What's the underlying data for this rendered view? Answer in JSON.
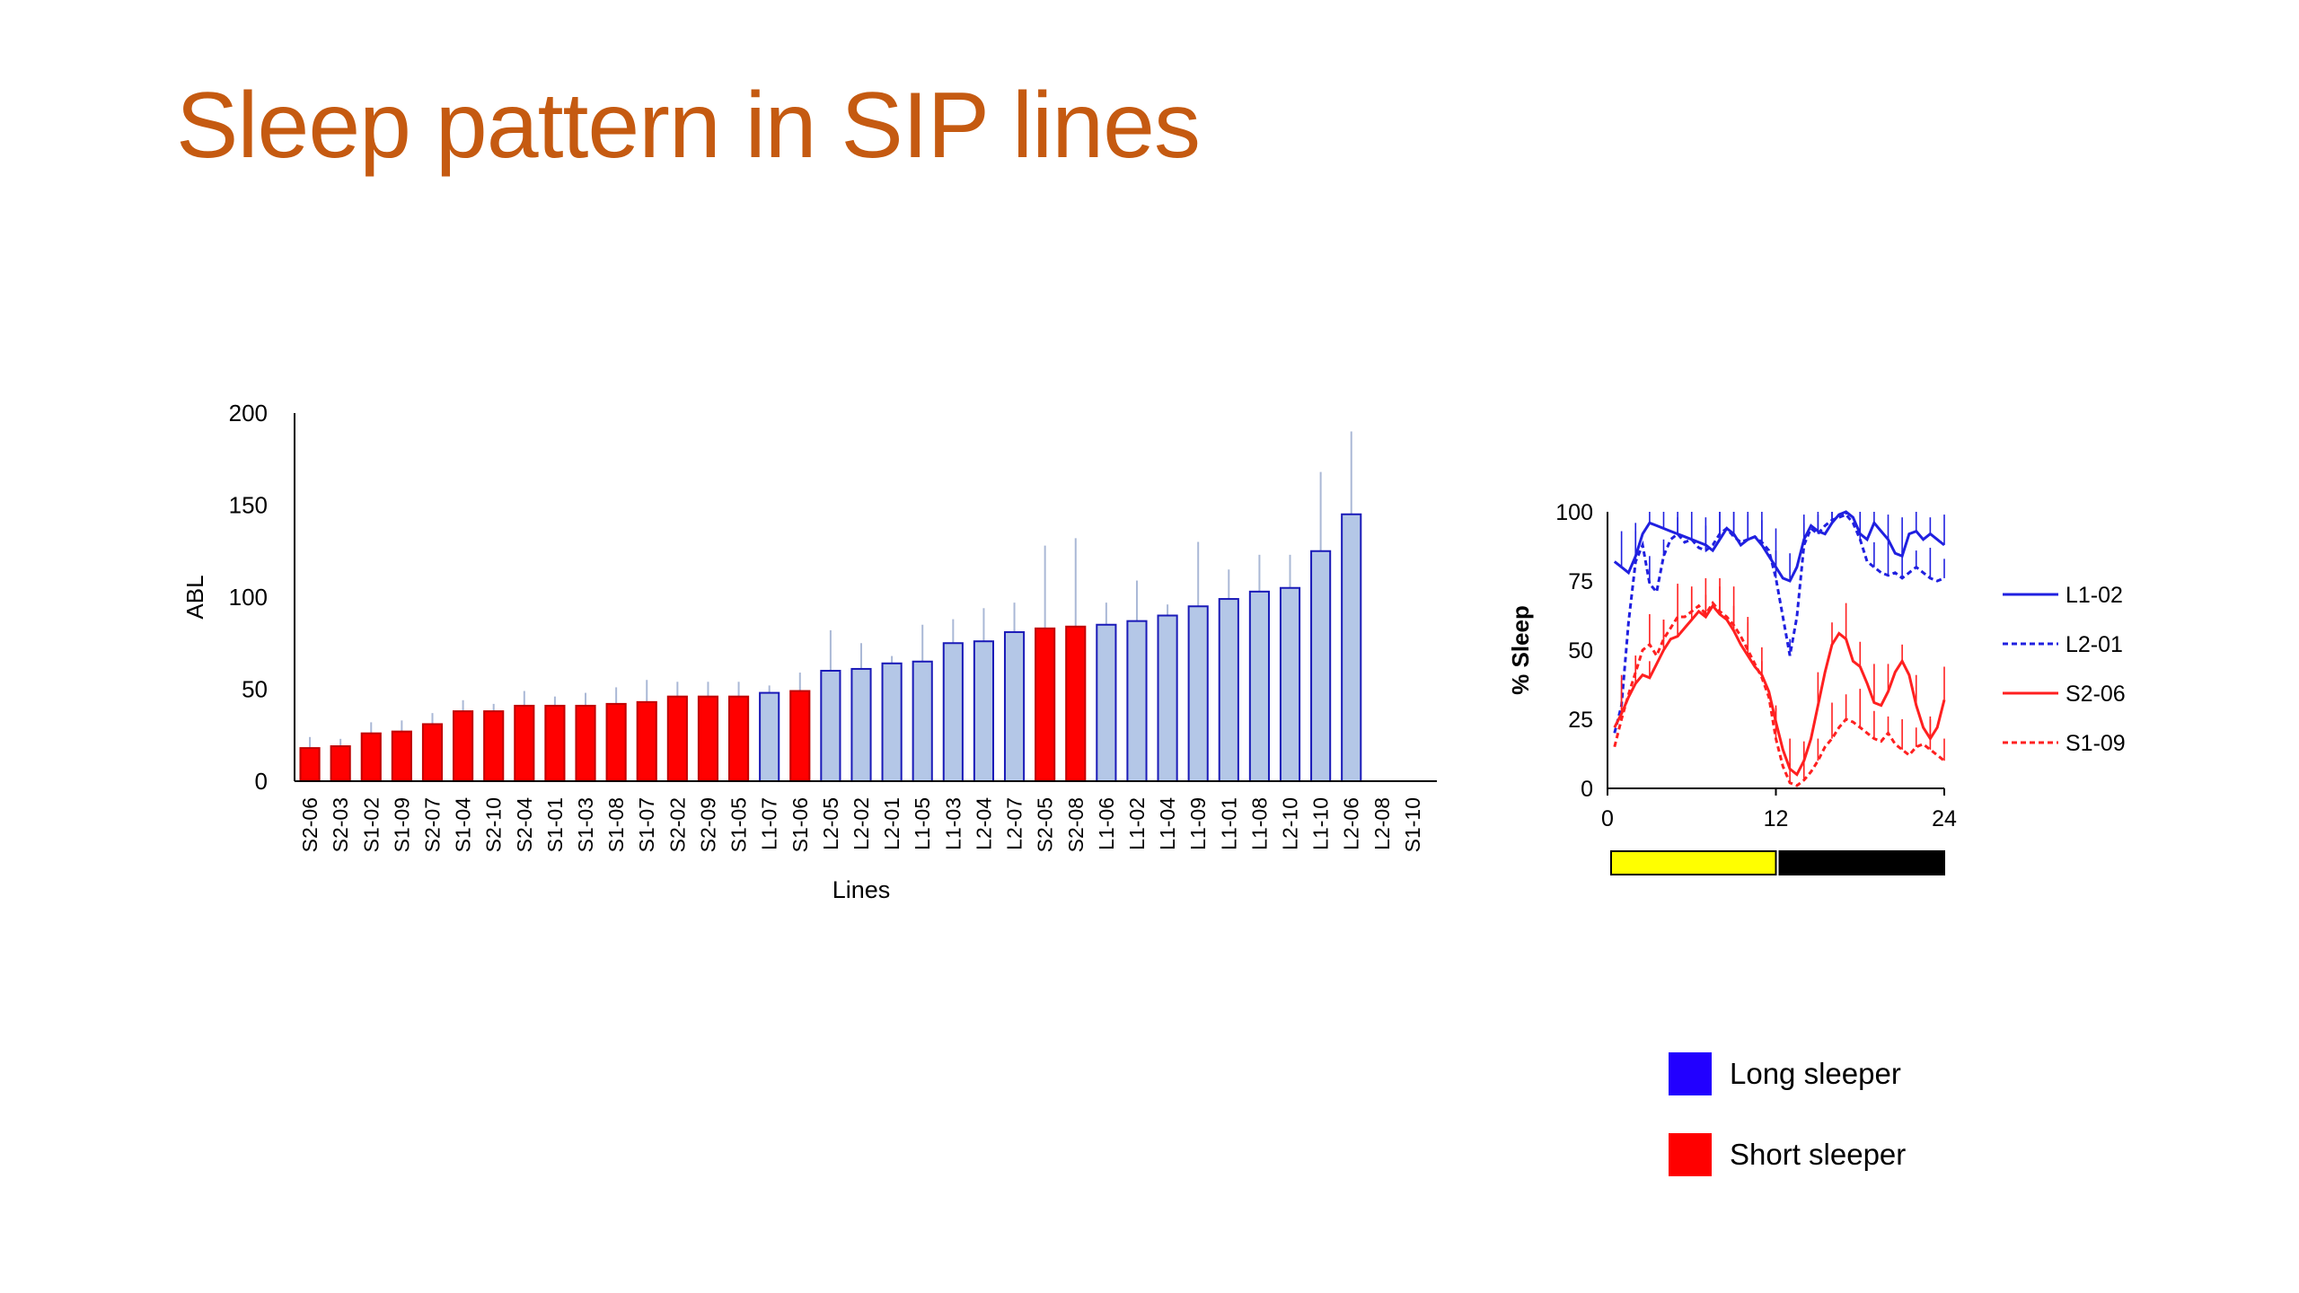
{
  "slide": {
    "title": "Sleep pattern in SIP lines"
  },
  "legend": {
    "items": [
      {
        "label": "Long sleeper",
        "color": "#2200ff"
      },
      {
        "label": "Short sleeper",
        "color": "#ff0000"
      }
    ]
  },
  "colors": {
    "short_bar": "#ff0000",
    "long_bar": "#b4c7e7",
    "long_bar_border": "#1a1ab8",
    "error_bar": "#aab8d6",
    "day": "#ffff00",
    "night": "#000000"
  },
  "chart_data": [
    {
      "type": "bar",
      "xlabel": "Lines",
      "ylabel": "ABL",
      "ylim": [
        0,
        200
      ],
      "yticks": [
        0,
        50,
        100,
        150,
        200
      ],
      "categories": [
        "S2-06",
        "S2-03",
        "S1-02",
        "S1-09",
        "S2-07",
        "S1-04",
        "S2-10",
        "S2-04",
        "S1-01",
        "S1-03",
        "S1-08",
        "S1-07",
        "S2-02",
        "S2-09",
        "S1-05",
        "L1-07",
        "S1-06",
        "L2-05",
        "L2-02",
        "L2-01",
        "L1-05",
        "L1-03",
        "L2-04",
        "L2-07",
        "S2-05",
        "S2-08",
        "L1-06",
        "L1-02",
        "L1-04",
        "L1-09",
        "L1-01",
        "L1-08",
        "L2-10",
        "L1-10",
        "L2-06",
        "L2-08",
        "S1-10"
      ],
      "values": [
        18,
        19,
        26,
        27,
        31,
        38,
        38,
        41,
        41,
        41,
        42,
        43,
        46,
        46,
        46,
        48,
        49,
        60,
        61,
        64,
        65,
        75,
        76,
        81,
        83,
        84,
        85,
        87,
        90,
        95,
        99,
        103,
        105,
        125,
        145,
        null,
        null
      ],
      "error": [
        6,
        4,
        6,
        6,
        6,
        6,
        4,
        8,
        5,
        7,
        9,
        12,
        8,
        8,
        8,
        4,
        10,
        22,
        14,
        4,
        20,
        13,
        18,
        16,
        45,
        48,
        12,
        22,
        6,
        35,
        16,
        20,
        18,
        43,
        45,
        null,
        null
      ],
      "groups": [
        "short",
        "short",
        "short",
        "short",
        "short",
        "short",
        "short",
        "short",
        "short",
        "short",
        "short",
        "short",
        "short",
        "short",
        "short",
        "long",
        "short",
        "long",
        "long",
        "long",
        "long",
        "long",
        "long",
        "long",
        "short",
        "short",
        "long",
        "long",
        "long",
        "long",
        "long",
        "long",
        "long",
        "long",
        "long",
        "short",
        "short"
      ]
    },
    {
      "type": "line",
      "ylabel": "% Sleep",
      "xlim": [
        0,
        24
      ],
      "ylim": [
        0,
        100
      ],
      "xticks": [
        0,
        12,
        24
      ],
      "yticks": [
        0,
        25,
        50,
        75,
        100
      ],
      "light_dark_bar": [
        {
          "from": 0,
          "to": 12,
          "phase": "light"
        },
        {
          "from": 12,
          "to": 24,
          "phase": "dark"
        }
      ],
      "x": [
        0.5,
        1,
        1.5,
        2,
        2.5,
        3,
        3.5,
        4,
        4.5,
        5,
        5.5,
        6,
        6.5,
        7,
        7.5,
        8,
        8.5,
        9,
        9.5,
        10,
        10.5,
        11,
        11.5,
        12,
        12.5,
        13,
        13.5,
        14,
        14.5,
        15,
        15.5,
        16,
        16.5,
        17,
        17.5,
        18,
        18.5,
        19,
        19.5,
        20,
        20.5,
        21,
        21.5,
        22,
        22.5,
        23,
        23.5,
        24
      ],
      "series": [
        {
          "name": "L1-02",
          "color": "#2020e0",
          "dash": "solid",
          "values": [
            82,
            80,
            78,
            84,
            92,
            96,
            95,
            94,
            93,
            92,
            91,
            90,
            89,
            88,
            86,
            90,
            94,
            92,
            88,
            90,
            91,
            88,
            84,
            80,
            76,
            75,
            80,
            90,
            95,
            93,
            92,
            96,
            99,
            100,
            98,
            92,
            90,
            96,
            93,
            90,
            85,
            84,
            92,
            93,
            90,
            92,
            90,
            88
          ]
        },
        {
          "name": "L2-01",
          "color": "#2020e0",
          "dash": "dashed",
          "values": [
            20,
            30,
            60,
            82,
            88,
            74,
            71,
            84,
            90,
            92,
            89,
            90,
            87,
            86,
            88,
            92,
            94,
            91,
            89,
            90,
            91,
            89,
            86,
            76,
            62,
            48,
            62,
            88,
            94,
            92,
            95,
            97,
            98,
            99,
            96,
            90,
            82,
            80,
            78,
            77,
            78,
            76,
            78,
            80,
            78,
            76,
            75,
            76
          ]
        },
        {
          "name": "S2-06",
          "color": "#ff2020",
          "dash": "solid",
          "values": [
            22,
            27,
            33,
            38,
            41,
            40,
            45,
            50,
            54,
            55,
            58,
            61,
            64,
            62,
            66,
            63,
            61,
            57,
            52,
            48,
            44,
            41,
            35,
            24,
            14,
            7,
            5,
            10,
            18,
            30,
            42,
            52,
            56,
            54,
            46,
            44,
            38,
            31,
            30,
            35,
            42,
            46,
            41,
            30,
            22,
            18,
            22,
            32
          ]
        },
        {
          "name": "S1-09",
          "color": "#ff2020",
          "dash": "dashed",
          "values": [
            15,
            25,
            34,
            42,
            50,
            52,
            48,
            54,
            58,
            62,
            62,
            64,
            66,
            63,
            67,
            64,
            62,
            59,
            55,
            50,
            45,
            40,
            33,
            18,
            8,
            2,
            1,
            3,
            6,
            10,
            15,
            18,
            22,
            25,
            24,
            22,
            20,
            18,
            17,
            20,
            16,
            14,
            12,
            15,
            16,
            14,
            12,
            10
          ]
        }
      ]
    }
  ]
}
